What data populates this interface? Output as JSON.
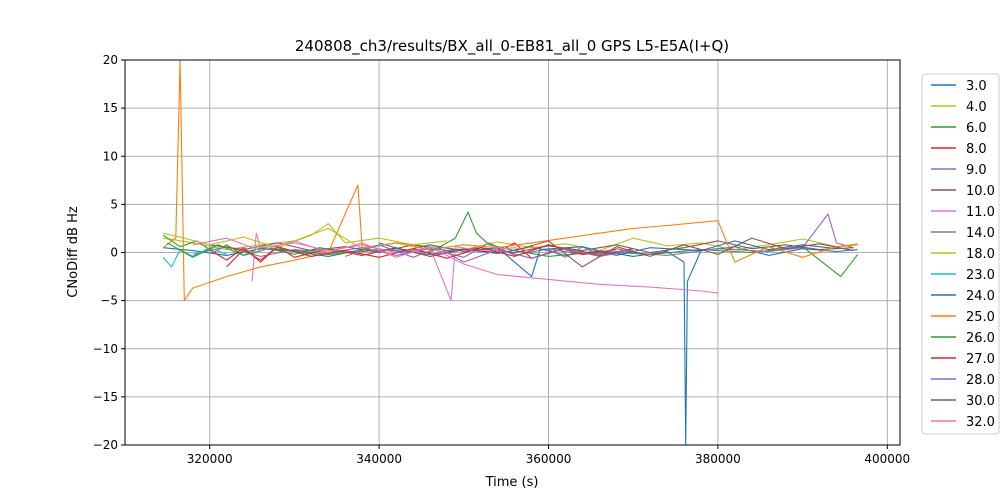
{
  "chart_data": {
    "type": "line",
    "title": "240808_ch3/results/BX_all_0-EB81_all_0 GPS L5-E5A(I+Q)",
    "xlabel": "Time (s)",
    "ylabel": "CNoDiff dB Hz",
    "xlim": [
      310000,
      401500
    ],
    "ylim": [
      -20,
      20
    ],
    "xticks": [
      320000,
      340000,
      360000,
      380000,
      400000
    ],
    "yticks": [
      -20,
      -15,
      -10,
      -5,
      0,
      5,
      10,
      15,
      20
    ],
    "grid": true,
    "legend_position": "right-outside",
    "series": [
      {
        "name": "3.0",
        "color": "#1f77b4",
        "points": [
          [
            314500,
            0.5
          ],
          [
            318000,
            0.2
          ],
          [
            322000,
            -0.3
          ],
          [
            326000,
            0.4
          ],
          [
            330000,
            0.1
          ],
          [
            334000,
            -0.4
          ],
          [
            338000,
            0.3
          ],
          [
            342000,
            0.2
          ],
          [
            346000,
            -0.2
          ],
          [
            350000,
            0.3
          ],
          [
            354000,
            -0.1
          ],
          [
            358000,
            0.6
          ],
          [
            362000,
            -0.3
          ],
          [
            366000,
            0.2
          ],
          [
            370000,
            -0.4
          ],
          [
            374000,
            0.1
          ],
          [
            376000,
            -1.0
          ],
          [
            376200,
            -20
          ],
          [
            376400,
            -3.0
          ],
          [
            378000,
            0.2
          ],
          [
            382000,
            0.6
          ],
          [
            386000,
            -0.3
          ],
          [
            390000,
            0.4
          ],
          [
            394000,
            0.1
          ],
          [
            396500,
            0.3
          ]
        ]
      },
      {
        "name": "4.0",
        "color": "#bcbd22",
        "points": [
          [
            314500,
            1.5
          ],
          [
            318000,
            1.0
          ],
          [
            322000,
            0.3
          ],
          [
            326000,
            0.8
          ],
          [
            330000,
            1.2
          ],
          [
            334000,
            2.5
          ],
          [
            338000,
            0.4
          ],
          [
            342000,
            1.0
          ],
          [
            346000,
            0.6
          ],
          [
            350000,
            0.3
          ],
          [
            354000,
            1.1
          ],
          [
            358000,
            0.5
          ],
          [
            362000,
            0.9
          ],
          [
            366000,
            0.2
          ],
          [
            370000,
            1.5
          ],
          [
            374000,
            0.7
          ],
          [
            378000,
            1.0
          ],
          [
            382000,
            0.3
          ],
          [
            386000,
            0.8
          ],
          [
            390000,
            1.4
          ],
          [
            394000,
            0.6
          ],
          [
            396500,
            0.9
          ]
        ]
      },
      {
        "name": "6.0",
        "color": "#2ca02c",
        "points": [
          [
            314500,
            1.8
          ],
          [
            316500,
            0.6
          ],
          [
            318500,
            1.2
          ],
          [
            320500,
            0.0
          ],
          [
            322000,
            0.8
          ],
          [
            324000,
            -0.3
          ],
          [
            326000,
            0.5
          ],
          [
            330000,
            0.2
          ],
          [
            334000,
            -0.2
          ],
          [
            338000,
            0.1
          ],
          [
            342000,
            0.4
          ],
          [
            346000,
            0.0
          ],
          [
            349000,
            1.5
          ],
          [
            350500,
            4.2
          ],
          [
            351500,
            2.0
          ],
          [
            353000,
            0.8
          ],
          [
            356000,
            0.2
          ],
          [
            360000,
            -0.4
          ],
          [
            366000,
            0.1
          ],
          [
            372000,
            -0.2
          ],
          [
            378000,
            0.3
          ],
          [
            384000,
            0.0
          ],
          [
            390000,
            0.6
          ],
          [
            394500,
            -2.5
          ],
          [
            396500,
            -0.2
          ]
        ]
      },
      {
        "name": "8.0",
        "color": "#d62728",
        "points": [
          [
            322000,
            -1.5
          ],
          [
            324000,
            0.3
          ],
          [
            326000,
            -0.8
          ],
          [
            328000,
            0.6
          ],
          [
            330000,
            -0.5
          ],
          [
            334000,
            0.4
          ],
          [
            338000,
            -0.3
          ],
          [
            342000,
            0.5
          ],
          [
            346000,
            -0.4
          ],
          [
            350000,
            0.3
          ],
          [
            354000,
            0.0
          ],
          [
            356000,
            1.0
          ],
          [
            358000,
            -0.6
          ],
          [
            362000,
            0.5
          ],
          [
            366000,
            -0.3
          ],
          [
            370000,
            0.4
          ]
        ]
      },
      {
        "name": "9.0",
        "color": "#9467bd",
        "points": [
          [
            318000,
            -0.2
          ],
          [
            322000,
            0.6
          ],
          [
            326000,
            -0.4
          ],
          [
            330000,
            0.3
          ],
          [
            334000,
            0.0
          ],
          [
            338000,
            0.5
          ],
          [
            342000,
            -0.3
          ],
          [
            346000,
            0.4
          ],
          [
            350000,
            -0.5
          ],
          [
            353000,
            1.0
          ],
          [
            356000,
            -0.3
          ],
          [
            360000,
            0.4
          ],
          [
            364000,
            -0.2
          ],
          [
            368000,
            0.1
          ],
          [
            374000,
            -0.3
          ],
          [
            380000,
            0.4
          ],
          [
            386000,
            0.1
          ],
          [
            390000,
            0.5
          ],
          [
            393000,
            4.0
          ],
          [
            394000,
            1.0
          ],
          [
            396000,
            0.5
          ]
        ]
      },
      {
        "name": "10.0",
        "color": "#8c564b",
        "points": [
          [
            320000,
            0.8
          ],
          [
            324000,
            0.3
          ],
          [
            328000,
            1.0
          ],
          [
            332000,
            0.2
          ],
          [
            336000,
            0.6
          ],
          [
            340000,
            0.0
          ],
          [
            344000,
            0.8
          ],
          [
            348000,
            0.2
          ],
          [
            352000,
            0.5
          ],
          [
            356000,
            0.0
          ],
          [
            360000,
            0.7
          ],
          [
            364000,
            0.2
          ],
          [
            368000,
            0.8
          ],
          [
            372000,
            0.0
          ],
          [
            376000,
            0.5
          ],
          [
            380000,
            1.2
          ],
          [
            384000,
            0.4
          ],
          [
            388000,
            0.8
          ],
          [
            392000,
            0.3
          ],
          [
            396000,
            0.5
          ]
        ]
      },
      {
        "name": "11.0",
        "color": "#e377c2",
        "points": [
          [
            325000,
            -3.0
          ],
          [
            325500,
            2.0
          ],
          [
            326000,
            0.5
          ],
          [
            330000,
            1.0
          ],
          [
            334000,
            0.2
          ],
          [
            338000,
            0.8
          ],
          [
            342000,
            0.0
          ],
          [
            346000,
            0.5
          ],
          [
            348500,
            -5.0
          ],
          [
            349000,
            0.6
          ],
          [
            352000,
            0.2
          ],
          [
            356000,
            0.5
          ],
          [
            358000,
            0.1
          ]
        ]
      },
      {
        "name": "14.0",
        "color": "#7f7f7f",
        "points": [
          [
            360000,
            0.3
          ],
          [
            362000,
            -0.5
          ],
          [
            364000,
            0.6
          ],
          [
            366000,
            -0.2
          ],
          [
            368000,
            0.4
          ],
          [
            370000,
            0.0
          ]
        ]
      },
      {
        "name": "18.0",
        "color": "#bcbd22",
        "points": [
          [
            314500,
            2.0
          ],
          [
            317000,
            1.5
          ],
          [
            320000,
            0.8
          ],
          [
            324000,
            1.6
          ],
          [
            328000,
            0.5
          ],
          [
            332000,
            1.8
          ],
          [
            334000,
            3.0
          ],
          [
            336000,
            1.0
          ],
          [
            340000,
            1.5
          ],
          [
            344000,
            0.8
          ],
          [
            348000,
            1.2
          ]
        ]
      },
      {
        "name": "23.0",
        "color": "#17becf",
        "points": [
          [
            314500,
            -0.5
          ],
          [
            315500,
            -1.5
          ],
          [
            316500,
            0.3
          ],
          [
            318000,
            -0.4
          ],
          [
            320000,
            0.5
          ],
          [
            322000,
            -0.2
          ]
        ]
      },
      {
        "name": "24.0",
        "color": "#1f77b4",
        "points": [
          [
            340000,
            1.0
          ],
          [
            343000,
            0.2
          ],
          [
            346000,
            0.8
          ],
          [
            350000,
            0.1
          ],
          [
            354000,
            0.5
          ],
          [
            358000,
            -2.5
          ],
          [
            359000,
            0.3
          ],
          [
            364000,
            0.6
          ],
          [
            368000,
            -0.3
          ],
          [
            372000,
            0.5
          ],
          [
            378000,
            0.2
          ],
          [
            382000,
            1.2
          ],
          [
            386000,
            0.3
          ],
          [
            390000,
            0.8
          ],
          [
            394000,
            0.4
          ]
        ]
      },
      {
        "name": "25.0",
        "color": "#ff7f0e",
        "points": [
          [
            314500,
            0.5
          ],
          [
            316000,
            1.5
          ],
          [
            316500,
            20
          ],
          [
            317000,
            -5.0
          ],
          [
            318000,
            -3.7
          ],
          [
            322000,
            -2.5
          ],
          [
            326000,
            -1.5
          ],
          [
            330000,
            -0.8
          ],
          [
            334000,
            0.0
          ],
          [
            337500,
            7.0
          ],
          [
            338000,
            0.5
          ],
          [
            342000,
            1.0
          ],
          [
            346000,
            0.3
          ],
          [
            350000,
            0.8
          ],
          [
            354000,
            0.5
          ],
          [
            358000,
            1.0
          ],
          [
            362000,
            1.5
          ],
          [
            366000,
            2.0
          ],
          [
            370000,
            2.5
          ],
          [
            374000,
            2.8
          ],
          [
            380000,
            3.3
          ],
          [
            382000,
            -1.0
          ],
          [
            386000,
            0.6
          ],
          [
            390000,
            -0.5
          ],
          [
            394000,
            0.6
          ],
          [
            396500,
            0.8
          ]
        ]
      },
      {
        "name": "26.0",
        "color": "#2ca02c",
        "points": [
          [
            315000,
            1.0
          ],
          [
            318000,
            -0.5
          ],
          [
            321000,
            0.8
          ],
          [
            324000,
            -0.3
          ],
          [
            327000,
            0.4
          ],
          [
            330000,
            -0.2
          ],
          [
            333000,
            0.5
          ],
          [
            336000,
            0.0
          ]
        ]
      },
      {
        "name": "27.0",
        "color": "#d62728",
        "points": [
          [
            320000,
            0.3
          ],
          [
            322000,
            -0.8
          ],
          [
            324000,
            0.5
          ],
          [
            326000,
            -1.0
          ],
          [
            328000,
            0.6
          ],
          [
            332000,
            -0.4
          ],
          [
            336000,
            0.2
          ],
          [
            340000,
            -0.5
          ],
          [
            344000,
            0.4
          ],
          [
            348000,
            -0.6
          ],
          [
            352000,
            0.5
          ],
          [
            356000,
            -0.4
          ],
          [
            360000,
            0.8
          ],
          [
            364000,
            -0.2
          ],
          [
            368000,
            0.3
          ]
        ]
      },
      {
        "name": "28.0",
        "color": "#9467bd",
        "points": [
          [
            336000,
            -0.4
          ],
          [
            340000,
            0.8
          ],
          [
            344000,
            -0.5
          ],
          [
            347000,
            0.5
          ],
          [
            350000,
            -1.0
          ],
          [
            354000,
            0.3
          ],
          [
            358000,
            -0.6
          ],
          [
            362000,
            0.4
          ],
          [
            366000,
            -0.4
          ],
          [
            370000,
            0.2
          ]
        ]
      },
      {
        "name": "30.0",
        "color": "#8c564b",
        "points": [
          [
            356000,
            0.2
          ],
          [
            360000,
            1.2
          ],
          [
            364000,
            -1.5
          ],
          [
            368000,
            0.6
          ],
          [
            372000,
            -0.4
          ],
          [
            376000,
            0.8
          ],
          [
            380000,
            -0.2
          ],
          [
            384000,
            1.5
          ],
          [
            388000,
            0.4
          ],
          [
            392000,
            0.9
          ],
          [
            396000,
            0.2
          ]
        ]
      },
      {
        "name": "32.0",
        "color": "#e377c2",
        "points": [
          [
            318000,
            0.8
          ],
          [
            322000,
            1.5
          ],
          [
            326000,
            0.2
          ],
          [
            330000,
            1.2
          ],
          [
            334000,
            0.0
          ],
          [
            338000,
            1.0
          ],
          [
            342000,
            -0.5
          ],
          [
            346000,
            0.6
          ],
          [
            350000,
            -1.2
          ],
          [
            354000,
            -2.3
          ],
          [
            360000,
            -2.8
          ],
          [
            366000,
            -3.3
          ],
          [
            372000,
            -3.6
          ],
          [
            378000,
            -4.0
          ],
          [
            380000,
            -4.2
          ]
        ]
      }
    ]
  }
}
